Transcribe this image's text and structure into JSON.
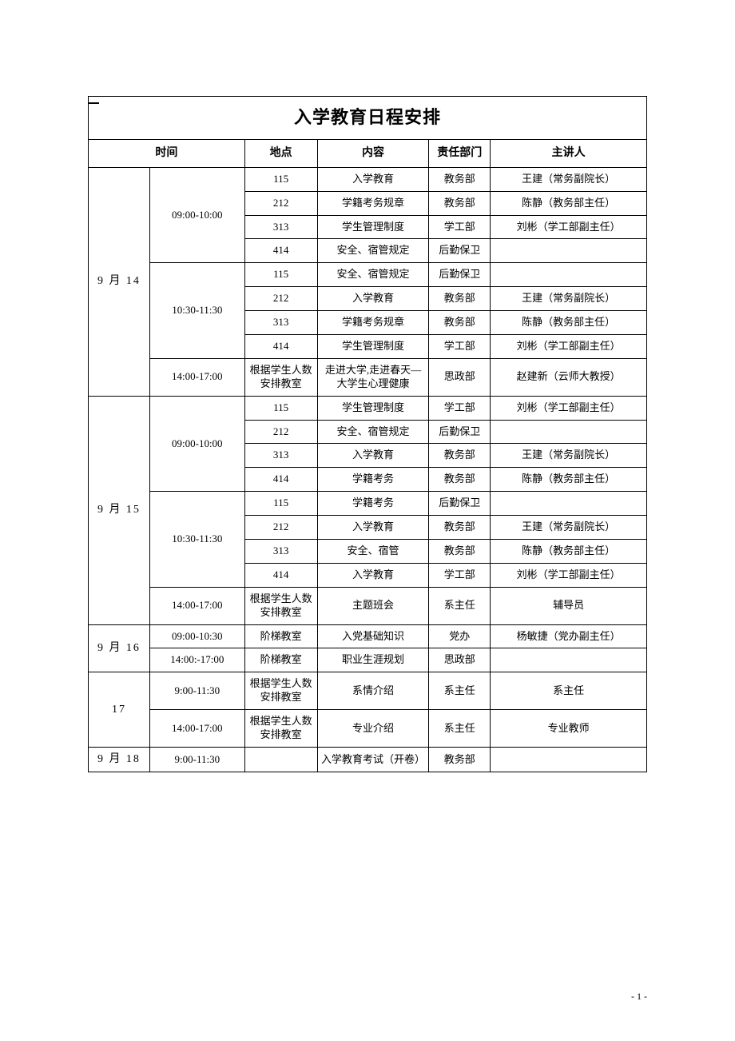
{
  "title": "入学教育日程安排",
  "headers": {
    "time": "时间",
    "location": "地点",
    "content": "内容",
    "dept": "责任部门",
    "speaker": "主讲人"
  },
  "dates": [
    "9 月 14",
    "9 月 15",
    "9 月 16",
    "17",
    "9 月 18"
  ],
  "times": {
    "d14_t1": "09:00-10:00",
    "d14_t2": "10:30-11:30",
    "d14_t3": "14:00-17:00",
    "d15_t1": "09:00-10:00",
    "d15_t2": "10:30-11:30",
    "d15_t3": "14:00-17:00",
    "d16_t1": "09:00-10:30",
    "d16_t2": "14:00:-17:00",
    "d17_t1": "9:00-11:30",
    "d17_t2": "14:00-17:00",
    "d18_t1": "9:00-11:30"
  },
  "rows": {
    "r1": {
      "loc": "115",
      "content": "入学教育",
      "dept": "教务部",
      "speaker": "王建（常务副院长）"
    },
    "r2": {
      "loc": "212",
      "content": "学籍考务规章",
      "dept": "教务部",
      "speaker": "陈静（教务部主任）"
    },
    "r3": {
      "loc": "313",
      "content": "学生管理制度",
      "dept": "学工部",
      "speaker": "刘彬（学工部副主任）"
    },
    "r4": {
      "loc": "414",
      "content": "安全、宿管规定",
      "dept": "后勤保卫",
      "speaker": ""
    },
    "r5": {
      "loc": "115",
      "content": "安全、宿管规定",
      "dept": "后勤保卫",
      "speaker": ""
    },
    "r6": {
      "loc": "212",
      "content": "入学教育",
      "dept": "教务部",
      "speaker": "王建（常务副院长）"
    },
    "r7": {
      "loc": "313",
      "content": "学籍考务规章",
      "dept": "教务部",
      "speaker": "陈静（教务部主任）"
    },
    "r8": {
      "loc": "414",
      "content": "学生管理制度",
      "dept": "学工部",
      "speaker": "刘彬（学工部副主任）"
    },
    "r9": {
      "loc": "根据学生人数安排教室",
      "content": "走进大学,走进春天—大学生心理健康",
      "dept": "思政部",
      "speaker": "赵建新（云师大教授）"
    },
    "r10": {
      "loc": "115",
      "content": "学生管理制度",
      "dept": "学工部",
      "speaker": "刘彬（学工部副主任）"
    },
    "r11": {
      "loc": "212",
      "content": "安全、宿管规定",
      "dept": "后勤保卫",
      "speaker": ""
    },
    "r12": {
      "loc": "313",
      "content": "入学教育",
      "dept": "教务部",
      "speaker": "王建（常务副院长）"
    },
    "r13": {
      "loc": "414",
      "content": "学籍考务",
      "dept": "教务部",
      "speaker": "陈静（教务部主任）"
    },
    "r14": {
      "loc": "115",
      "content": "学籍考务",
      "dept": "后勤保卫",
      "speaker": ""
    },
    "r15": {
      "loc": "212",
      "content": "入学教育",
      "dept": "教务部",
      "speaker": "王建（常务副院长）"
    },
    "r16": {
      "loc": "313",
      "content": "安全、宿管",
      "dept": "教务部",
      "speaker": "陈静（教务部主任）"
    },
    "r17": {
      "loc": "414",
      "content": "入学教育",
      "dept": "学工部",
      "speaker": "刘彬（学工部副主任）"
    },
    "r18": {
      "loc": "根据学生人数安排教室",
      "content": "主题班会",
      "dept": "系主任",
      "speaker": "辅导员"
    },
    "r19": {
      "loc": "阶梯教室",
      "content": "入党基础知识",
      "dept": "党办",
      "speaker": "杨敏捷（党办副主任）"
    },
    "r20": {
      "loc": "阶梯教室",
      "content": "职业生涯规划",
      "dept": "思政部",
      "speaker": ""
    },
    "r21": {
      "loc": "根据学生人数安排教室",
      "content": "系情介绍",
      "dept": "系主任",
      "speaker": "系主任"
    },
    "r22": {
      "loc": "根据学生人数安排教室",
      "content": "专业介绍",
      "dept": "系主任",
      "speaker": "专业教师"
    },
    "r23": {
      "loc": "",
      "content": "入学教育考试（开卷）",
      "dept": "教务部",
      "speaker": ""
    }
  },
  "page_num": "- 1 -",
  "styles": {
    "background_color": "#ffffff",
    "border_color": "#000000",
    "text_color": "#000000",
    "title_fontsize": 22,
    "header_fontsize": 14,
    "body_fontsize": 13,
    "font_family": "SimSun"
  }
}
